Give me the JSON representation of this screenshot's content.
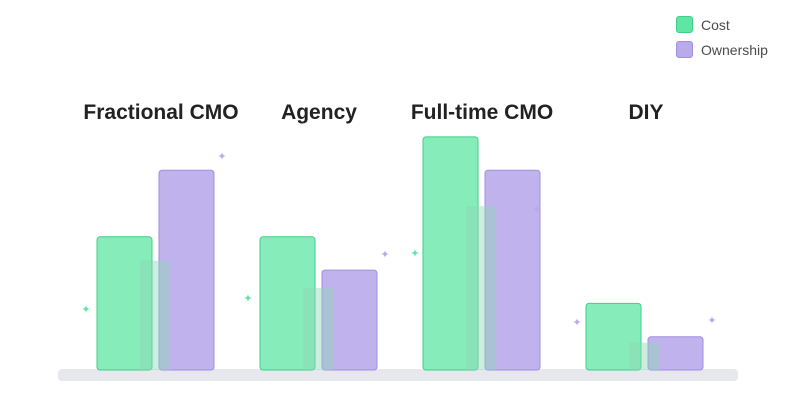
{
  "chart_data": {
    "type": "bar",
    "categories": [
      "Fractional CMO",
      "Agency",
      "Full-time CMO",
      "DIY"
    ],
    "series": [
      {
        "name": "Cost",
        "values": [
          4,
          4,
          7,
          2
        ],
        "color": "#5ee6a2"
      },
      {
        "name": "Ownership",
        "values": [
          6,
          3,
          6,
          1
        ],
        "color": "#b9aaea"
      }
    ],
    "ylim": [
      0,
      7
    ],
    "grid": false,
    "legend_position": "top-right",
    "title": "",
    "xlabel": "",
    "ylabel": ""
  }
}
